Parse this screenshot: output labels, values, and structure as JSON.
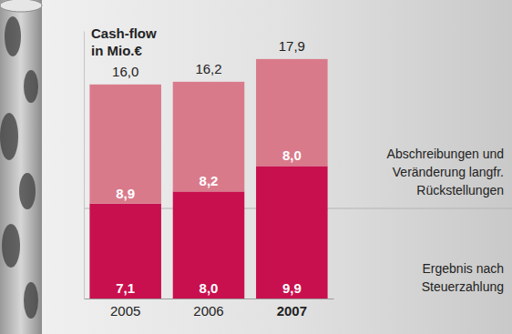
{
  "chart_data": {
    "type": "bar",
    "title": "Cash-flow\nin Mio.€",
    "categories": [
      "2005",
      "2006",
      "2007"
    ],
    "stacked": true,
    "data_labels": true,
    "tick_labels": "x",
    "ylim": [
      0,
      20
    ],
    "yticks": [],
    "series": [
      {
        "name": "Ergebnis nach\nSteuerzahlung",
        "color": "#c8104e",
        "values": [
          7.1,
          8.0,
          9.9
        ],
        "value_labels": [
          "7,1",
          "8,0",
          "9,9"
        ]
      },
      {
        "name": "Abschreibungen und\nVeränderung langfr.\nRückstellungen",
        "color": "#d97a8b",
        "values": [
          8.9,
          8.2,
          8.0
        ],
        "value_labels": [
          "8,9",
          "8,2",
          "8,0"
        ]
      }
    ],
    "totals": {
      "values": [
        16.0,
        16.2,
        17.9
      ],
      "value_labels": [
        "16,0",
        "16,2",
        "17,9"
      ]
    }
  }
}
